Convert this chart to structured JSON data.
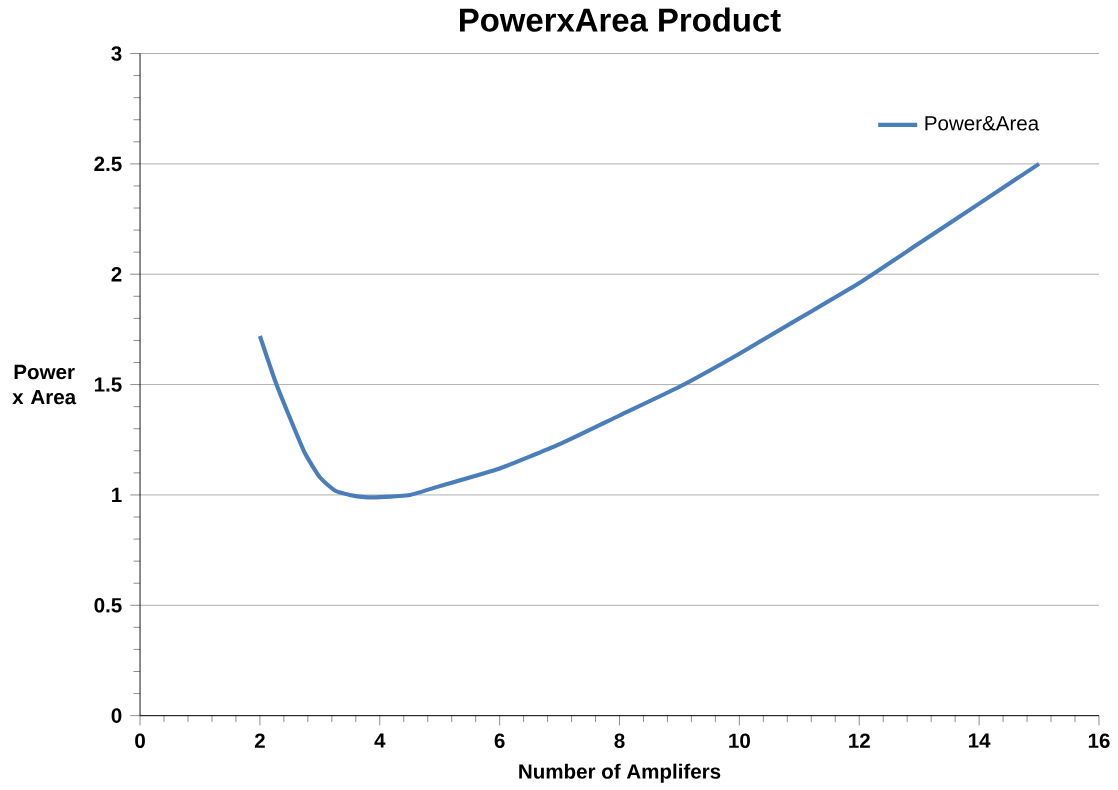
{
  "chart_data": {
    "type": "line",
    "title": "PowerxArea Product",
    "xlabel": "Number of Amplifers",
    "ylabel": "Power x Area",
    "series": [
      {
        "name": "Power&Area",
        "color": "#4a7ebb",
        "x": [
          2,
          2.25,
          2.5,
          2.75,
          3,
          3.25,
          3.5,
          3.75,
          4,
          4.5,
          5,
          6,
          7,
          8,
          9,
          10,
          11,
          12,
          13,
          14,
          15
        ],
        "values": [
          1.72,
          1.52,
          1.35,
          1.19,
          1.08,
          1.02,
          1.0,
          0.99,
          0.99,
          1.0,
          1.04,
          1.12,
          1.23,
          1.36,
          1.49,
          1.64,
          1.8,
          1.96,
          2.14,
          2.32,
          2.5
        ]
      }
    ],
    "xlim": [
      0,
      16
    ],
    "xticks": [
      0,
      2,
      4,
      6,
      8,
      10,
      12,
      14,
      16
    ],
    "ylim": [
      0,
      3
    ],
    "yticks": [
      0,
      0.5,
      1,
      1.5,
      2,
      2.5,
      3
    ],
    "grid": "y",
    "legend": "top right",
    "marker": "none",
    "line_style": "solid"
  }
}
